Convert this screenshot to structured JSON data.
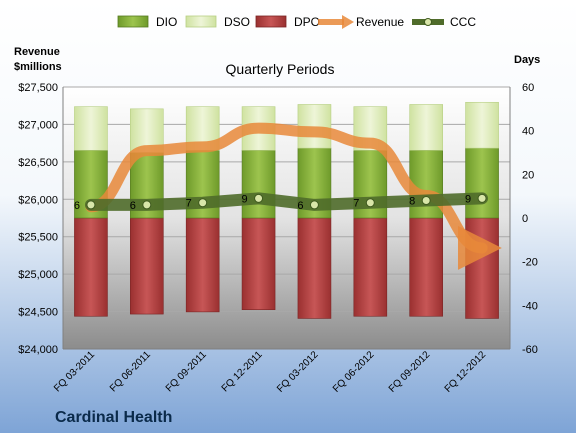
{
  "chart_data": {
    "type": "bar",
    "title": "Quarterly Periods",
    "company": "Cardinal Health",
    "left_axis_label_line1": "Revenue",
    "left_axis_label_line2": "$millions",
    "right_axis_label": "Days",
    "categories": [
      "FQ 03-2011",
      "FQ 06-2011",
      "FQ 09-2011",
      "FQ 12-2011",
      "FQ 03-2012",
      "FQ 06-2012",
      "FQ 09-2012",
      "FQ 12-2012"
    ],
    "left_axis": {
      "min": 24000,
      "max": 27500,
      "ticks": [
        "$24,000",
        "$24,500",
        "$25,000",
        "$25,500",
        "$26,000",
        "$26,500",
        "$27,000",
        "$27,500"
      ]
    },
    "right_axis": {
      "min": -60,
      "max": 60,
      "ticks": [
        "-60",
        "-40",
        "-20",
        "0",
        "20",
        "40",
        "60"
      ]
    },
    "legend_position": "top",
    "grid": true,
    "series": [
      {
        "name": "DIO",
        "axis": "right",
        "kind": "stacked-bar",
        "color": "#7fa934",
        "values": [
          31,
          30,
          31,
          31,
          32,
          31,
          31,
          32
        ]
      },
      {
        "name": "DSO",
        "axis": "right",
        "kind": "stacked-bar",
        "color": "#d6e6a8",
        "values": [
          20,
          20,
          20,
          20,
          20,
          20,
          21,
          21
        ]
      },
      {
        "name": "DPO",
        "axis": "right",
        "kind": "negative-bar",
        "color": "#a83a3a",
        "values": [
          -45,
          -44,
          -43,
          -42,
          -46,
          -45,
          -45,
          -46
        ]
      },
      {
        "name": "Revenue",
        "axis": "left",
        "kind": "line-arrow",
        "color": "#e8883a",
        "values": [
          25900,
          26650,
          26700,
          26950,
          26900,
          26750,
          26050,
          25350
        ]
      },
      {
        "name": "CCC",
        "axis": "right",
        "kind": "line-marker",
        "color": "#4f6b2a",
        "values": [
          6,
          6,
          7,
          9,
          6,
          7,
          8,
          9
        ]
      }
    ]
  }
}
